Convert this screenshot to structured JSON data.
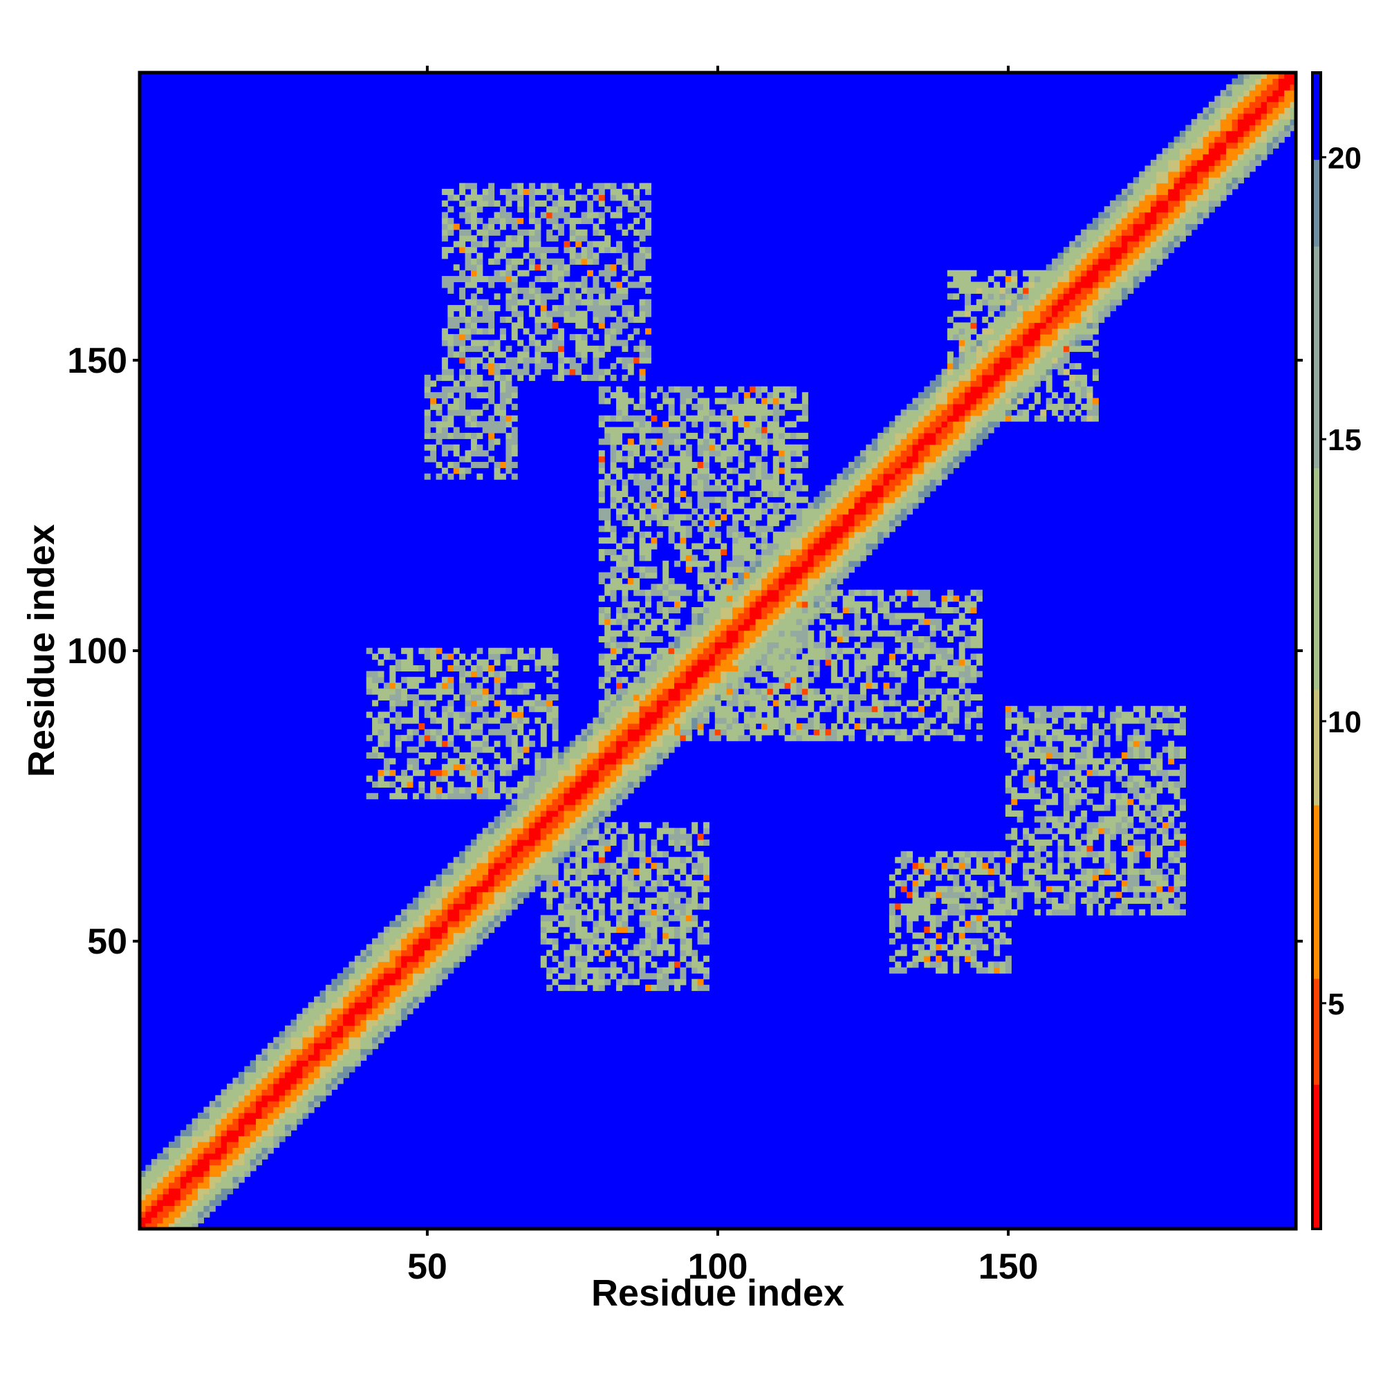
{
  "chart_data": {
    "type": "heatmap",
    "title": "",
    "xlabel": "Residue index",
    "ylabel": "Residue index",
    "xlim": [
      1,
      199
    ],
    "ylim": [
      1,
      199
    ],
    "x_ticks": [
      {
        "value": 50,
        "label": "50"
      },
      {
        "value": 100,
        "label": "100"
      },
      {
        "value": 150,
        "label": "150"
      }
    ],
    "y_ticks": [
      {
        "value": 50,
        "label": "50"
      },
      {
        "value": 100,
        "label": "100"
      },
      {
        "value": 150,
        "label": "150"
      }
    ],
    "colorbar": {
      "range": [
        1,
        21.5
      ],
      "ticks": [
        {
          "value": 5,
          "label": "5"
        },
        {
          "value": 10,
          "label": "10"
        },
        {
          "value": 15,
          "label": "15"
        },
        {
          "value": 20,
          "label": "20"
        }
      ],
      "colors": {
        "low": "#ff0000",
        "mid_low": "#ff8c00",
        "mid": "#a8c08a",
        "mid_high": "#6f8fa3",
        "high": "#0000ff"
      }
    },
    "matrix_description": {
      "symmetric": true,
      "background_value": 21,
      "diagonal_band_halfwidth": 9,
      "contact_regions": [
        {
          "x": [
            50,
            65
          ],
          "y": [
            130,
            147
          ],
          "level": 15
        },
        {
          "x": [
            53,
            88
          ],
          "y": [
            147,
            180
          ],
          "level": 15
        },
        {
          "x": [
            40,
            72
          ],
          "y": [
            75,
            100
          ],
          "level": 14
        },
        {
          "x": [
            70,
            98
          ],
          "y": [
            42,
            70
          ],
          "level": 14
        },
        {
          "x": [
            80,
            115
          ],
          "y": [
            85,
            145
          ],
          "level": 14
        },
        {
          "x": [
            100,
            145
          ],
          "y": [
            85,
            110
          ],
          "level": 14
        },
        {
          "x": [
            130,
            150
          ],
          "y": [
            45,
            65
          ],
          "level": 14
        },
        {
          "x": [
            150,
            180
          ],
          "y": [
            55,
            90
          ],
          "level": 14
        },
        {
          "x": [
            140,
            165
          ],
          "y": [
            140,
            165
          ],
          "level": 13
        }
      ]
    }
  }
}
